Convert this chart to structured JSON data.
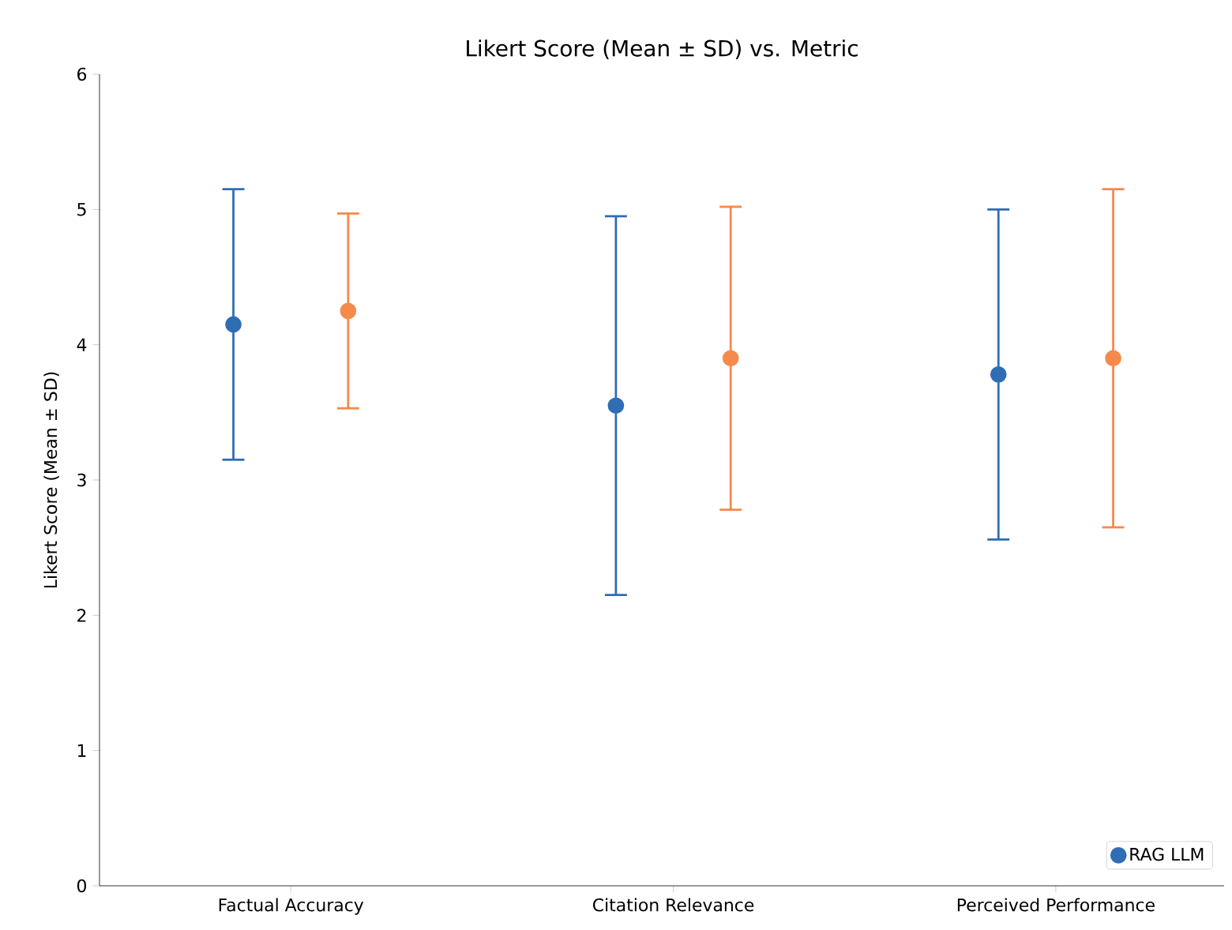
{
  "chart_data": {
    "type": "scatter",
    "title": "Likert Score (Mean ± SD) vs. Metric",
    "ylabel": "Likert Score (Mean ± SD)",
    "categories": [
      "Factual Accuracy",
      "Citation Relevance",
      "Perceived Performance"
    ],
    "series": [
      {
        "name": "RAG LLM",
        "color": "#2f6db5",
        "values": [
          4.15,
          3.55,
          3.78
        ],
        "errors": [
          1.0,
          1.4,
          1.22
        ]
      },
      {
        "color": "#f58a4b",
        "values": [
          4.25,
          3.9,
          3.9
        ],
        "errors": [
          0.72,
          1.12,
          1.25
        ]
      }
    ],
    "ylim": [
      0,
      6
    ],
    "yticks": [
      0,
      1,
      2,
      3,
      4,
      5,
      6
    ],
    "legend": "bottom right",
    "grid": false
  }
}
